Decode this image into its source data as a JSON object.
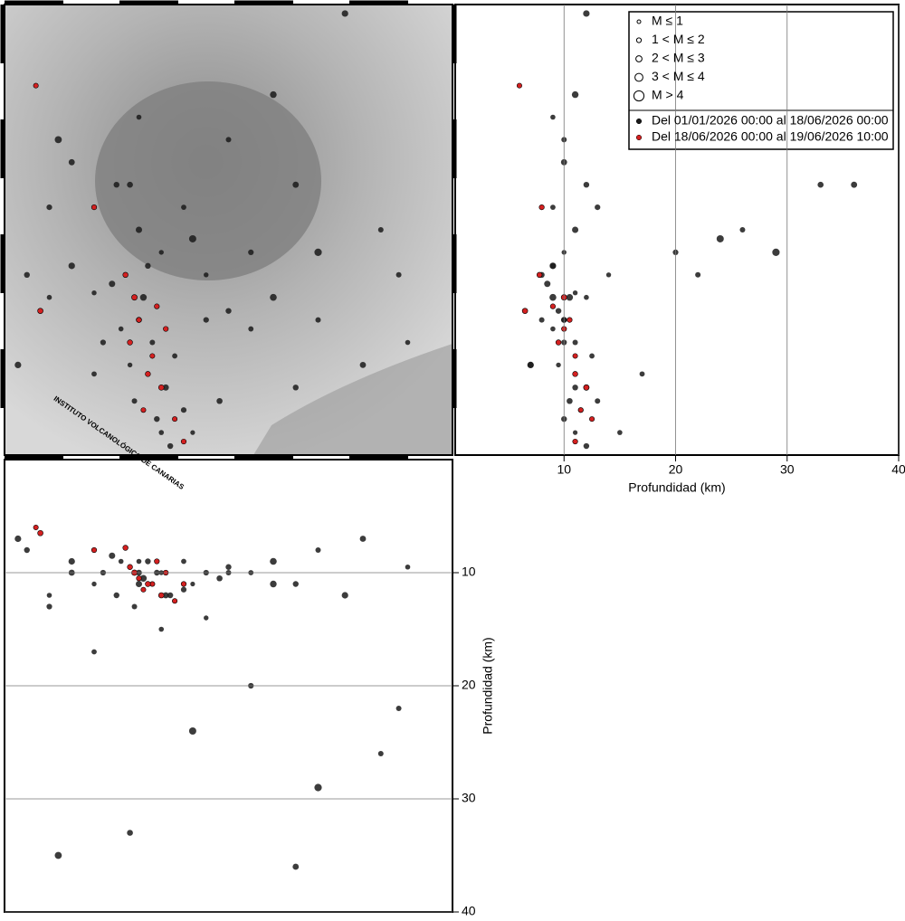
{
  "chart_data": {
    "type": "seismic",
    "xlim": [
      0,
      100
    ],
    "ylim": [
      0,
      100
    ],
    "depth_lim": [
      0,
      40
    ],
    "depth_ticks": [
      10,
      20,
      30,
      40
    ],
    "depth_label": "Profundidad (km)",
    "grid": true,
    "size_legend": [
      "M ≤ 1",
      "1 < M ≤ 2",
      "2 < M ≤ 3",
      "3 < M ≤ 4",
      "M > 4"
    ],
    "logo_text": "INSTITUTO VOLCANOLÓGICO DE CANARIAS",
    "series": [
      {
        "name": "Del 01/01/2026 00:00 al 18/06/2026 00:00",
        "color": "#1a1a1a",
        "x": [
          30,
          33,
          28,
          36,
          40,
          31,
          26,
          38,
          34,
          42,
          29,
          24,
          45,
          50,
          55,
          20,
          15,
          10,
          5,
          60,
          70,
          80,
          90,
          65,
          35,
          30,
          40,
          25,
          50,
          60,
          30,
          15,
          10,
          76,
          45,
          35,
          20,
          55,
          42,
          70,
          28,
          12,
          84,
          65,
          88,
          37,
          48,
          22,
          32,
          3
        ],
        "values": [
          30,
          25,
          20,
          15,
          10,
          35,
          28,
          22,
          8,
          5,
          12,
          38,
          30,
          32,
          28,
          36,
          42,
          35,
          40,
          35,
          30,
          20,
          25,
          15,
          45,
          50,
          55,
          60,
          70,
          80,
          75,
          65,
          55,
          98,
          40,
          5,
          18,
          45,
          48,
          45,
          60,
          70,
          50,
          60,
          40,
          2,
          12,
          25,
          42,
          20
        ],
        "depth": [
          10,
          11,
          9.5,
          12,
          11.5,
          10.5,
          9,
          12.5,
          10,
          11,
          13,
          8.5,
          10,
          9.5,
          10,
          11,
          9,
          12,
          8,
          9,
          8,
          7,
          9.5,
          11,
          10,
          11,
          9,
          12,
          10,
          11,
          9,
          10,
          13,
          12,
          14,
          15,
          17,
          20,
          24,
          29,
          33,
          35,
          26,
          36,
          22,
          12,
          10.5,
          10,
          9,
          7
        ],
        "mag": [
          2.1,
          1.8,
          1.5,
          2.2,
          1.9,
          2.5,
          1.6,
          1.7,
          2.0,
          1.4,
          1.8,
          2.3,
          1.9,
          2.0,
          1.7,
          1.5,
          2.4,
          1.6,
          2.0,
          2.6,
          1.8,
          2.2,
          1.6,
          2.0,
          1.5,
          2.3,
          1.7,
          2.0,
          1.8,
          2.5,
          1.6,
          2.2,
          1.9,
          2.4,
          1.5,
          1.6,
          1.7,
          1.9,
          2.8,
          2.9,
          2.1,
          2.7,
          1.8,
          2.2,
          1.8,
          2.0,
          2.1,
          1.9,
          2.0,
          2.4
        ]
      },
      {
        "name": "Del 18/06/2026 00:00 al 19/06/2026 10:00",
        "color": "#d42020",
        "x": [
          30,
          33,
          35,
          28,
          31,
          36,
          29,
          38,
          32,
          34,
          7,
          20,
          27,
          40,
          8
        ],
        "values": [
          30,
          22,
          15,
          25,
          10,
          28,
          35,
          8,
          18,
          33,
          82,
          55,
          40,
          3,
          32
        ],
        "depth": [
          10.5,
          11,
          12,
          9.5,
          11.5,
          10,
          10,
          12.5,
          11,
          9,
          6,
          8,
          7.8,
          11,
          6.5
        ],
        "mag": [
          1.6,
          1.5,
          1.8,
          1.7,
          1.5,
          1.6,
          1.9,
          1.5,
          1.7,
          1.6,
          1.5,
          1.6,
          1.7,
          1.6,
          1.8
        ]
      }
    ]
  }
}
